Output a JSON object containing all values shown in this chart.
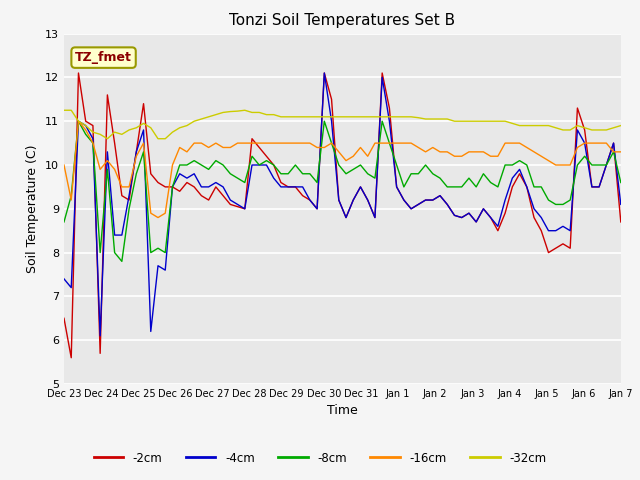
{
  "title": "Tonzi Soil Temperatures Set B",
  "xlabel": "Time",
  "ylabel": "Soil Temperature (C)",
  "ylim": [
    5.0,
    13.0
  ],
  "yticks": [
    5.0,
    6.0,
    7.0,
    8.0,
    9.0,
    10.0,
    11.0,
    12.0,
    13.0
  ],
  "xtick_labels": [
    "Dec 23",
    "Dec 24",
    "Dec 25",
    "Dec 26",
    "Dec 27",
    "Dec 28",
    "Dec 29",
    "Dec 30",
    "Dec 31",
    "Jan 1",
    "Jan 2",
    "Jan 3",
    "Jan 4",
    "Jan 5",
    "Jan 6",
    "Jan 7"
  ],
  "colors": {
    "-2cm": "#cc0000",
    "-4cm": "#0000cc",
    "-8cm": "#00aa00",
    "-16cm": "#ff8800",
    "-32cm": "#cccc00"
  },
  "annotation_box": {
    "text": "TZ_fmet",
    "fontsize": 9,
    "text_color": "#8b0000",
    "bg_color": "#ffffcc",
    "border_color": "#999900"
  },
  "plot_bg_color": "#e8e8e8",
  "fig_bg_color": "#f5f5f5",
  "grid_color": "#ffffff",
  "series": {
    "-2cm": [
      6.5,
      5.6,
      12.1,
      11.0,
      10.9,
      5.7,
      11.6,
      10.5,
      9.3,
      9.2,
      10.3,
      11.4,
      9.8,
      9.6,
      9.5,
      9.5,
      9.4,
      9.6,
      9.5,
      9.3,
      9.2,
      9.5,
      9.3,
      9.1,
      9.05,
      9.0,
      10.6,
      10.4,
      10.2,
      10.0,
      9.6,
      9.5,
      9.5,
      9.3,
      9.2,
      9.0,
      12.1,
      11.5,
      9.2,
      8.8,
      9.2,
      9.5,
      9.2,
      8.8,
      12.1,
      11.3,
      9.5,
      9.2,
      9.0,
      9.1,
      9.2,
      9.2,
      9.3,
      9.1,
      8.85,
      8.8,
      8.9,
      8.7,
      9.0,
      8.8,
      8.5,
      8.9,
      9.5,
      9.8,
      9.5,
      8.8,
      8.5,
      8.0,
      8.1,
      8.2,
      8.1,
      11.3,
      10.8,
      9.5,
      9.5,
      10.0,
      10.5,
      8.7
    ],
    "-4cm": [
      7.4,
      7.2,
      11.0,
      10.9,
      10.6,
      6.1,
      10.3,
      8.4,
      8.4,
      9.3,
      10.3,
      10.8,
      6.2,
      7.7,
      7.6,
      9.5,
      9.8,
      9.7,
      9.8,
      9.5,
      9.5,
      9.6,
      9.5,
      9.2,
      9.1,
      9.0,
      10.0,
      10.0,
      10.0,
      9.7,
      9.5,
      9.5,
      9.5,
      9.5,
      9.2,
      9.0,
      12.1,
      11.0,
      9.2,
      8.8,
      9.2,
      9.5,
      9.2,
      8.8,
      12.0,
      11.0,
      9.5,
      9.2,
      9.0,
      9.1,
      9.2,
      9.2,
      9.3,
      9.1,
      8.85,
      8.8,
      8.9,
      8.7,
      9.0,
      8.8,
      8.6,
      9.2,
      9.7,
      9.9,
      9.5,
      9.0,
      8.8,
      8.5,
      8.5,
      8.6,
      8.5,
      10.8,
      10.5,
      9.5,
      9.5,
      10.0,
      10.5,
      9.1
    ],
    "-8cm": [
      8.7,
      9.3,
      11.0,
      10.7,
      10.5,
      8.0,
      9.9,
      8.0,
      7.8,
      9.0,
      9.8,
      10.3,
      8.0,
      8.1,
      8.0,
      9.5,
      10.0,
      10.0,
      10.1,
      10.0,
      9.9,
      10.1,
      10.0,
      9.8,
      9.7,
      9.6,
      10.2,
      10.0,
      10.1,
      10.0,
      9.8,
      9.8,
      10.0,
      9.8,
      9.8,
      9.6,
      11.0,
      10.5,
      10.0,
      9.8,
      9.9,
      10.0,
      9.8,
      9.7,
      11.0,
      10.5,
      10.0,
      9.5,
      9.8,
      9.8,
      10.0,
      9.8,
      9.7,
      9.5,
      9.5,
      9.5,
      9.7,
      9.5,
      9.8,
      9.6,
      9.5,
      10.0,
      10.0,
      10.1,
      10.0,
      9.5,
      9.5,
      9.2,
      9.1,
      9.1,
      9.2,
      10.0,
      10.2,
      10.0,
      10.0,
      10.0,
      10.3,
      9.6
    ],
    "-16cm": [
      10.0,
      9.2,
      11.0,
      10.8,
      10.5,
      9.9,
      10.1,
      9.9,
      9.5,
      9.5,
      10.2,
      10.5,
      8.9,
      8.8,
      8.9,
      10.0,
      10.4,
      10.3,
      10.5,
      10.5,
      10.4,
      10.5,
      10.4,
      10.4,
      10.5,
      10.5,
      10.5,
      10.5,
      10.5,
      10.5,
      10.5,
      10.5,
      10.5,
      10.5,
      10.5,
      10.4,
      10.4,
      10.5,
      10.3,
      10.1,
      10.2,
      10.4,
      10.2,
      10.5,
      10.5,
      10.5,
      10.5,
      10.5,
      10.5,
      10.4,
      10.3,
      10.4,
      10.3,
      10.3,
      10.2,
      10.2,
      10.3,
      10.3,
      10.3,
      10.2,
      10.2,
      10.5,
      10.5,
      10.5,
      10.4,
      10.3,
      10.2,
      10.1,
      10.0,
      10.0,
      10.0,
      10.4,
      10.5,
      10.5,
      10.5,
      10.5,
      10.3,
      10.3
    ],
    "-32cm": [
      11.25,
      11.25,
      11.0,
      10.9,
      10.75,
      10.7,
      10.6,
      10.75,
      10.7,
      10.8,
      10.85,
      10.95,
      10.85,
      10.6,
      10.6,
      10.75,
      10.85,
      10.9,
      11.0,
      11.05,
      11.1,
      11.15,
      11.2,
      11.22,
      11.23,
      11.25,
      11.2,
      11.2,
      11.15,
      11.15,
      11.1,
      11.1,
      11.1,
      11.1,
      11.1,
      11.1,
      11.1,
      11.1,
      11.1,
      11.1,
      11.1,
      11.1,
      11.1,
      11.1,
      11.1,
      11.1,
      11.1,
      11.1,
      11.1,
      11.08,
      11.05,
      11.05,
      11.05,
      11.05,
      11.0,
      11.0,
      11.0,
      11.0,
      11.0,
      11.0,
      11.0,
      11.0,
      10.95,
      10.9,
      10.9,
      10.9,
      10.9,
      10.9,
      10.85,
      10.8,
      10.8,
      10.9,
      10.85,
      10.8,
      10.8,
      10.8,
      10.85,
      10.9
    ]
  }
}
